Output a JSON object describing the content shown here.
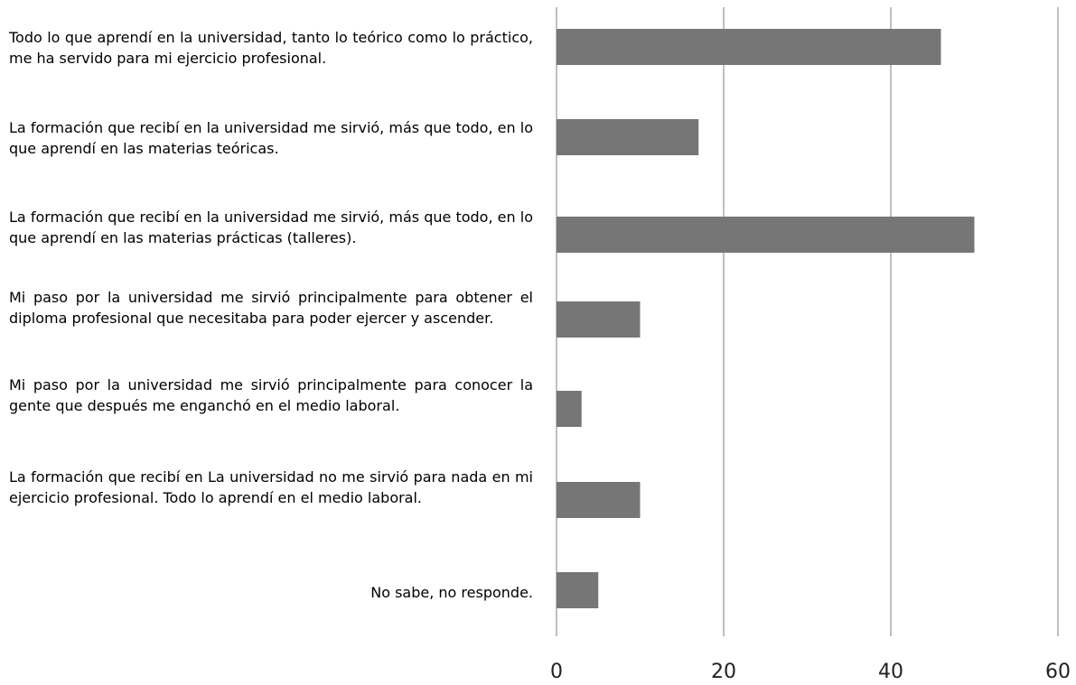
{
  "chart_data": {
    "type": "bar",
    "orientation": "horizontal",
    "categories": [
      "Todo lo que aprendí en la universidad, tanto lo teórico como lo práctico, me ha servido para mi ejercicio profesional.",
      "La formación que recibí en la universidad me sirvió, más que todo, en lo que aprendí en las materias teóricas.",
      "La formación que recibí en la universidad me sirvió, más que todo, en lo que aprendí en las materias prácticas (talleres).",
      "Mi paso por la universidad me sirvió principalmente para obtener el diploma profesional que necesitaba para poder ejercer y ascender.",
      "Mi paso por la universidad me sirvió principalmente para conocer la gente que después me enganchó en el medio laboral.",
      "La formación que recibí en La universidad no me sirvió para nada en mi ejercicio profesional. Todo lo aprendí en el medio laboral.",
      "No sabe, no responde."
    ],
    "values": [
      46,
      17,
      50,
      10,
      3,
      10,
      5
    ],
    "xlim": [
      0,
      60
    ],
    "xticks": [
      "0",
      "20",
      "40",
      "60"
    ],
    "grid": "vertical",
    "bar_color": "#767676",
    "gridline_color": "#7f7f7f"
  }
}
